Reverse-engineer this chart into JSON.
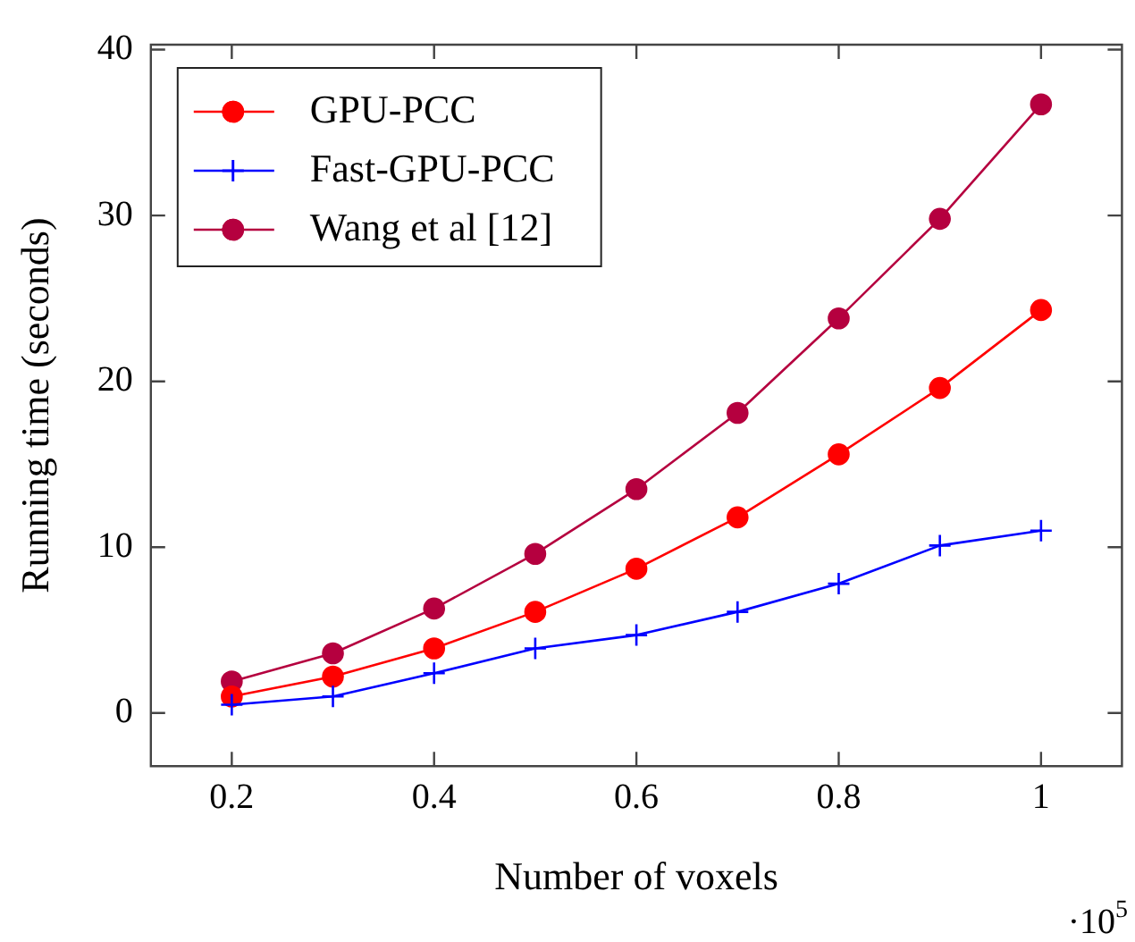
{
  "chart_data": {
    "type": "line",
    "xlabel": "Number of voxels",
    "ylabel": "Running time (seconds)",
    "x": [
      0.2,
      0.3,
      0.4,
      0.5,
      0.6,
      0.7,
      0.8,
      0.9,
      1.0
    ],
    "series": [
      {
        "name": "GPU-PCC",
        "color": "#ff0000",
        "marker": "circle",
        "values": [
          1.0,
          2.2,
          3.9,
          6.1,
          8.7,
          11.8,
          15.6,
          19.6,
          24.3
        ]
      },
      {
        "name": "Fast-GPU-PCC",
        "color": "#0000ff",
        "marker": "cross",
        "values": [
          0.5,
          1.0,
          2.4,
          3.9,
          4.7,
          6.1,
          7.8,
          10.1,
          11.0
        ]
      },
      {
        "name": "Wang et al [12]",
        "color": "#b5003f",
        "marker": "circle",
        "values": [
          1.9,
          3.6,
          6.3,
          9.6,
          13.5,
          18.1,
          23.8,
          29.8,
          36.7
        ]
      }
    ],
    "xlim": [
      0.12,
      1.08
    ],
    "xticks": [
      0.2,
      0.4,
      0.6,
      0.8,
      1
    ],
    "ylim": [
      -3.2,
      40.3
    ],
    "yticks": [
      0,
      10,
      20,
      30,
      40
    ],
    "grid": false,
    "legend": "top left",
    "line_style": "solid",
    "annotations": [
      "·10$^{5}$"
    ]
  }
}
